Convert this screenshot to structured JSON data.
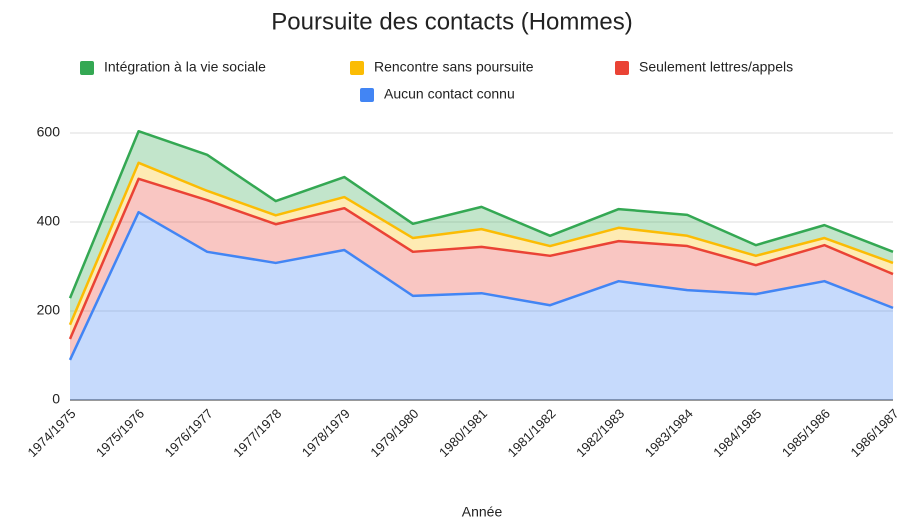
{
  "chart_data": {
    "type": "stacked_area",
    "title": "Poursuite des contacts (Hommes)",
    "x_label": "Année",
    "categories": [
      "1974/1975",
      "1975/1976",
      "1976/1977",
      "1977/1978",
      "1978/1979",
      "1979/1980",
      "1980/1981",
      "1981/1982",
      "1982/1983",
      "1983/1984",
      "1984/1985",
      "1985/1986",
      "1986/1987"
    ],
    "series": [
      {
        "name": "Intégration à la vie sociale",
        "color": "#34a853",
        "values": [
          60,
          71,
          81,
          32,
          45,
          32,
          50,
          23,
          42,
          47,
          24,
          29,
          25
        ]
      },
      {
        "name": "Rencontre sans poursuite",
        "color": "#fbbc04",
        "values": [
          32,
          36,
          21,
          20,
          25,
          31,
          40,
          22,
          30,
          23,
          21,
          16,
          25
        ]
      },
      {
        "name": "Seulement lettres/appels",
        "color": "#ea4335",
        "values": [
          47,
          75,
          116,
          87,
          94,
          99,
          104,
          111,
          90,
          99,
          65,
          81,
          76
        ]
      },
      {
        "name": "Aucun contact connu",
        "color": "#4285f4",
        "values": [
          90,
          422,
          333,
          308,
          337,
          234,
          240,
          213,
          267,
          247,
          238,
          267,
          207
        ]
      }
    ],
    "ylim": [
      0,
      600
    ],
    "yticks": [
      0,
      200,
      400,
      600
    ],
    "grid": true,
    "legend": "top"
  }
}
